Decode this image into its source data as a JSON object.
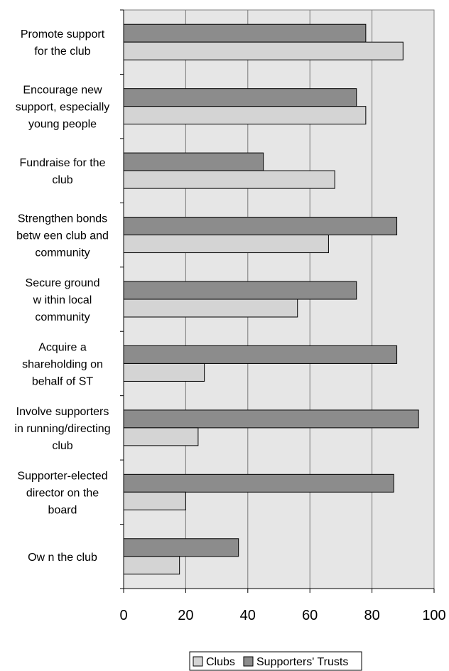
{
  "chart_data": {
    "type": "bar",
    "orientation": "horizontal",
    "categories": [
      [
        "Promote support",
        "for the club"
      ],
      [
        "Encourage new",
        "support, especially",
        "young people"
      ],
      [
        "Fundraise for the",
        "club"
      ],
      [
        "Strengthen bonds",
        "betw een club and",
        "community"
      ],
      [
        "Secure ground",
        "w ithin local",
        "community"
      ],
      [
        "Acquire a",
        "shareholding on",
        "behalf of ST"
      ],
      [
        "Involve supporters",
        "in running/directing",
        "club"
      ],
      [
        "Supporter-elected",
        "director on the",
        "board"
      ],
      [
        "Ow n the club"
      ]
    ],
    "series": [
      {
        "name": "Supporters' Trusts",
        "color": "#8c8c8c",
        "values": [
          78,
          75,
          45,
          88,
          75,
          88,
          95,
          87,
          37
        ]
      },
      {
        "name": "Clubs",
        "color": "#d4d4d4",
        "values": [
          90,
          78,
          68,
          66,
          56,
          26,
          24,
          20,
          18
        ]
      }
    ],
    "xlim": [
      0,
      100
    ],
    "xticks": [
      0,
      20,
      40,
      60,
      80,
      100
    ],
    "grid": true,
    "plot_background": "#e6e6e6",
    "legend": {
      "placement": "bottom-center",
      "order": [
        "Clubs",
        "Supporters' Trusts"
      ]
    }
  }
}
